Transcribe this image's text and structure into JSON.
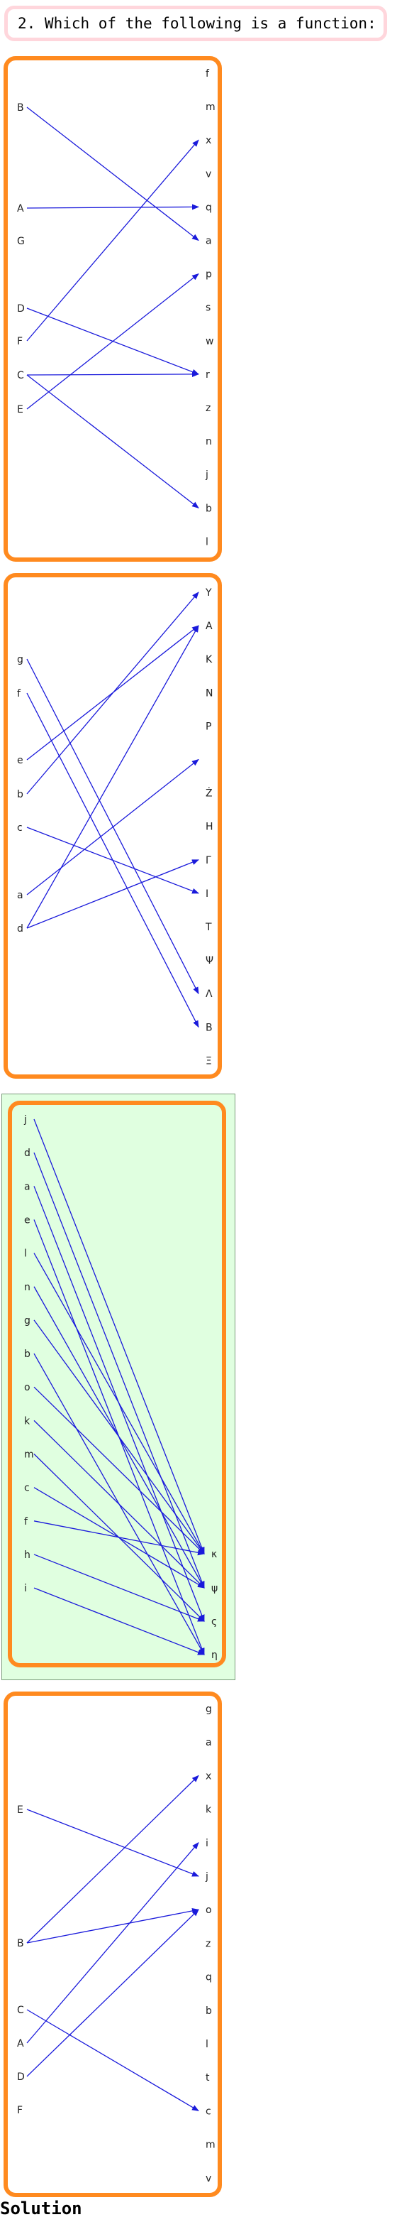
{
  "question": "2. Which of the following is a function:",
  "solution_label": "Solution",
  "colors": {
    "frame": "#ff8a1f",
    "arrow": "#1a1adb",
    "highlight": "#e0ffe0"
  },
  "diagrams": [
    {
      "left": [
        "B",
        "A",
        "G",
        "D",
        "F",
        "C",
        "E"
      ],
      "right": [
        "f",
        "m",
        "x",
        "v",
        "q",
        "a",
        "p",
        "s",
        "w",
        "r",
        "z",
        "n",
        "j",
        "b",
        "l"
      ],
      "arrows": [
        [
          "B",
          "a"
        ],
        [
          "A",
          "q"
        ],
        [
          "D",
          "r"
        ],
        [
          "F",
          "x"
        ],
        [
          "C",
          "r"
        ],
        [
          "C",
          "b"
        ],
        [
          "E",
          "p"
        ]
      ],
      "highlight": false
    },
    {
      "left": [
        "g",
        "f",
        "e",
        "b",
        "c",
        "a",
        "d"
      ],
      "right": [
        "Y",
        "A",
        "K",
        "N",
        "P",
        "",
        "Ż",
        "H",
        "Γ",
        "I",
        "T",
        "Ψ",
        "Λ",
        "B",
        "Ξ"
      ],
      "arrows": [
        [
          "g",
          "Λ"
        ],
        [
          "f",
          "B"
        ],
        [
          "e",
          "A"
        ],
        [
          "b",
          "Y"
        ],
        [
          "c",
          "I"
        ],
        [
          "a",
          ""
        ],
        [
          "d",
          "A"
        ],
        [
          "d",
          "Γ"
        ]
      ],
      "highlight": false
    },
    {
      "left": [
        "j",
        "d",
        "a",
        "e",
        "l",
        "n",
        "g",
        "b",
        "o",
        "k",
        "m",
        "c",
        "f",
        "h",
        "i"
      ],
      "right": [
        "κ",
        "ψ",
        "ς",
        "η"
      ],
      "arrows": [
        [
          "j",
          "κ"
        ],
        [
          "d",
          "ψ"
        ],
        [
          "a",
          "ς"
        ],
        [
          "e",
          "η"
        ],
        [
          "l",
          "κ"
        ],
        [
          "n",
          "ψ"
        ],
        [
          "g",
          "κ"
        ],
        [
          "b",
          "η"
        ],
        [
          "o",
          "κ"
        ],
        [
          "k",
          "ψ"
        ],
        [
          "m",
          "ς"
        ],
        [
          "c",
          "ψ"
        ],
        [
          "f",
          "κ"
        ],
        [
          "h",
          "ς"
        ],
        [
          "i",
          "η"
        ]
      ],
      "highlight": true
    },
    {
      "left": [
        "E",
        "B",
        "C",
        "A",
        "D",
        "F"
      ],
      "right": [
        "g",
        "a",
        "x",
        "k",
        "i",
        "j",
        "o",
        "z",
        "q",
        "b",
        "l",
        "t",
        "c",
        "m",
        "v"
      ],
      "arrows": [
        [
          "E",
          "j"
        ],
        [
          "B",
          "x"
        ],
        [
          "B",
          "o"
        ],
        [
          "C",
          "c"
        ],
        [
          "A",
          "i"
        ],
        [
          "D",
          "o"
        ]
      ],
      "highlight": false
    }
  ]
}
